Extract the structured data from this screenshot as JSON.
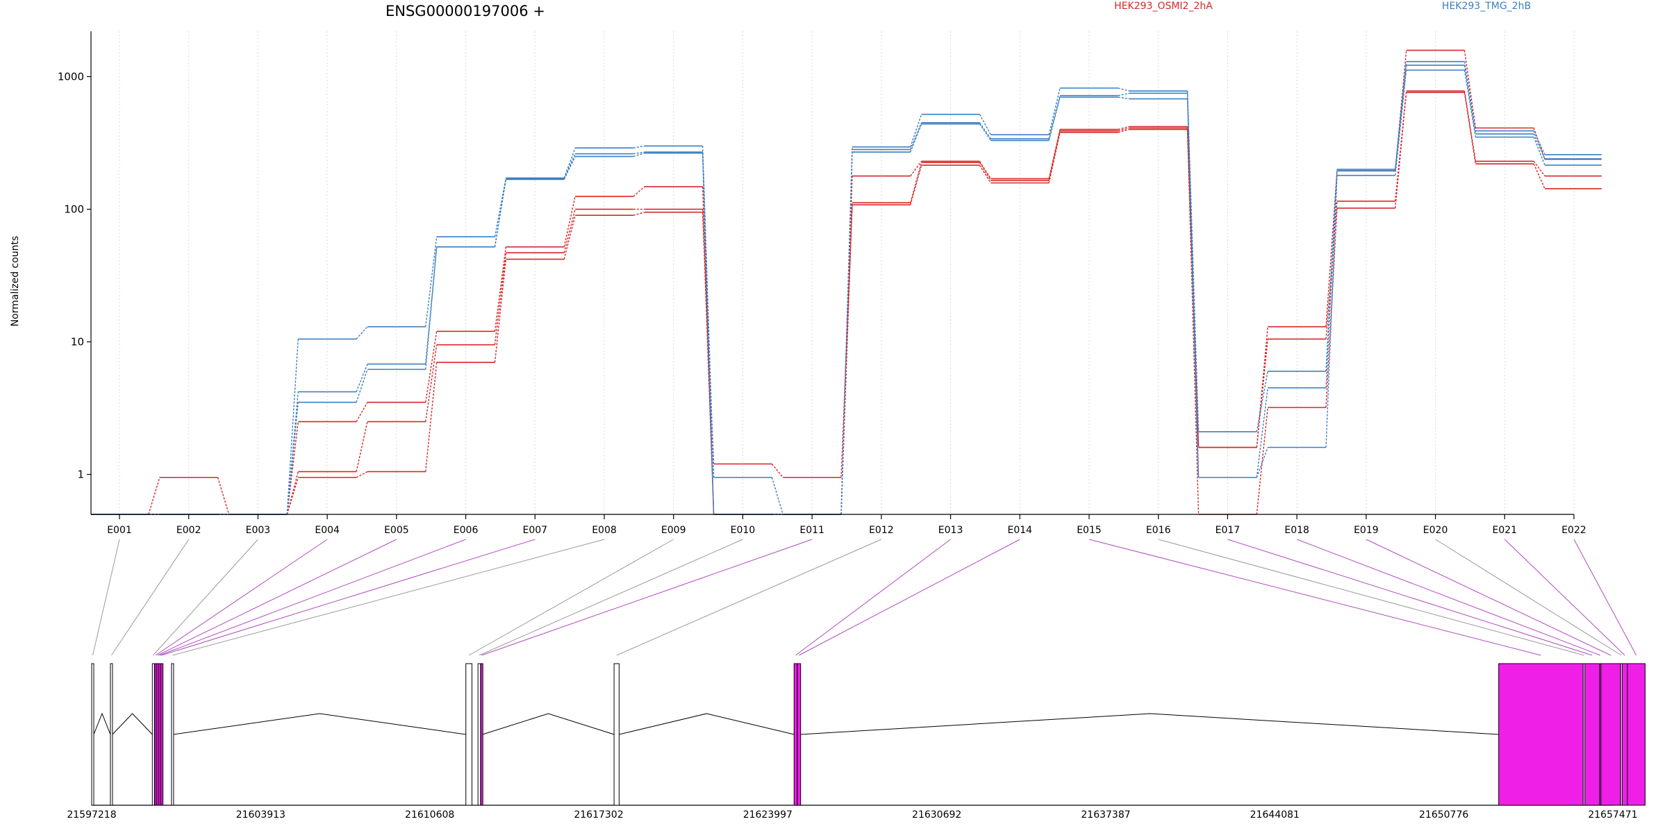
{
  "chart_data": {
    "type": "line",
    "title": "ENSG00000197006 +",
    "ylabel": "Normalized counts",
    "yscale": "log",
    "ylim": [
      0.5,
      2200
    ],
    "yticks": [
      1,
      10,
      100,
      1000
    ],
    "ytick_labels": [
      "1",
      "10",
      "100",
      "1000"
    ],
    "grid": "vertical dotted",
    "legend": "top",
    "categories": [
      "E001",
      "E002",
      "E003",
      "E004",
      "E005",
      "E006",
      "E007",
      "E008",
      "E009",
      "E010",
      "E011",
      "E012",
      "E013",
      "E014",
      "E015",
      "E016",
      "E017",
      "E018",
      "E019",
      "E020",
      "E021",
      "E022"
    ],
    "groups": [
      {
        "name": "HEK293_OSMI2_2hA",
        "color": "#d62728"
      },
      {
        "name": "HEK293_TMG_2hB",
        "color": "#3a7fc1"
      }
    ],
    "series": [
      {
        "group": 0,
        "values": [
          0.5,
          0.95,
          0.5,
          0.95,
          1.05,
          7,
          42,
          90,
          95,
          1.2,
          0.95,
          108,
          215,
          158,
          380,
          400,
          0.5,
          3.2,
          102,
          760,
          220,
          143
        ]
      },
      {
        "group": 0,
        "values": [
          0.5,
          0.5,
          0.5,
          1.05,
          2.5,
          9.5,
          47,
          100,
          100,
          0.5,
          0.5,
          112,
          225,
          165,
          390,
          410,
          1.6,
          10.5,
          115,
          780,
          230,
          178
        ]
      },
      {
        "group": 0,
        "values": [
          0.5,
          0.5,
          0.5,
          2.5,
          3.5,
          12,
          52,
          125,
          148,
          0.5,
          0.5,
          178,
          230,
          170,
          400,
          420,
          1.6,
          13,
          195,
          1580,
          410,
          238
        ]
      },
      {
        "group": 1,
        "values": [
          0.5,
          0.5,
          0.5,
          3.5,
          6.2,
          52,
          168,
          250,
          265,
          0.5,
          0.5,
          270,
          440,
          330,
          700,
          680,
          0.95,
          1.6,
          180,
          1120,
          350,
          215
        ]
      },
      {
        "group": 1,
        "values": [
          0.5,
          0.5,
          0.5,
          4.2,
          6.8,
          52,
          170,
          262,
          270,
          0.5,
          0.5,
          282,
          450,
          340,
          720,
          750,
          0.95,
          4.5,
          195,
          1220,
          370,
          240
        ]
      },
      {
        "group": 1,
        "values": [
          0.5,
          0.5,
          0.5,
          10.5,
          13,
          62,
          172,
          290,
          300,
          0.95,
          0.5,
          295,
          520,
          365,
          820,
          780,
          2.1,
          6,
          200,
          1300,
          390,
          258
        ]
      }
    ],
    "gene_model": {
      "coordinate_ticks": [
        "21597218",
        "21603913",
        "21610608",
        "21617302",
        "21623997",
        "21630692",
        "21637387",
        "21644081",
        "21650776",
        "21657471"
      ],
      "coordinate_range": [
        21597218,
        21657471
      ],
      "exons": [
        {
          "id": "E001",
          "start": 21597218,
          "end": 21597300,
          "highlight": false
        },
        {
          "id": "E002",
          "start": 21597960,
          "end": 21598040,
          "highlight": false
        },
        {
          "id": "E003",
          "start": 21599620,
          "end": 21599680,
          "highlight": false
        },
        {
          "id": "E004",
          "start": 21599720,
          "end": 21599780,
          "highlight": true
        },
        {
          "id": "E005",
          "start": 21599800,
          "end": 21599860,
          "highlight": true
        },
        {
          "id": "E006",
          "start": 21599880,
          "end": 21599940,
          "highlight": true
        },
        {
          "id": "E007",
          "start": 21599960,
          "end": 21600000,
          "highlight": true
        },
        {
          "id": "E008",
          "start": 21600380,
          "end": 21600460,
          "highlight": false
        },
        {
          "id": "E009",
          "start": 21612040,
          "end": 21612280,
          "highlight": false
        },
        {
          "id": "E010",
          "start": 21612520,
          "end": 21612620,
          "highlight": false
        },
        {
          "id": "E011",
          "start": 21612630,
          "end": 21612700,
          "highlight": true
        },
        {
          "id": "E012",
          "start": 21617910,
          "end": 21618110,
          "highlight": false
        },
        {
          "id": "E013",
          "start": 21625040,
          "end": 21625160,
          "highlight": true
        },
        {
          "id": "E014",
          "start": 21625170,
          "end": 21625300,
          "highlight": true
        },
        {
          "id": "E015",
          "start": 21652950,
          "end": 21656300,
          "highlight": true
        },
        {
          "id": "E016",
          "start": 21656300,
          "end": 21656360,
          "highlight": false
        },
        {
          "id": "E017",
          "start": 21656360,
          "end": 21656950,
          "highlight": true
        },
        {
          "id": "E018",
          "start": 21656950,
          "end": 21657000,
          "highlight": true
        },
        {
          "id": "E019",
          "start": 21657000,
          "end": 21657780,
          "highlight": true
        },
        {
          "id": "E020",
          "start": 21657780,
          "end": 21657840,
          "highlight": false
        },
        {
          "id": "E021",
          "start": 21657840,
          "end": 21658050,
          "highlight": true
        },
        {
          "id": "E022",
          "start": 21658050,
          "end": 21658750,
          "highlight": true
        }
      ],
      "introns": [
        [
          21597300,
          21597960
        ],
        [
          21598040,
          21599620
        ],
        [
          21600460,
          21612040
        ],
        [
          21612700,
          21617910
        ],
        [
          21618110,
          21625040
        ],
        [
          21625300,
          21652950
        ]
      ]
    }
  }
}
